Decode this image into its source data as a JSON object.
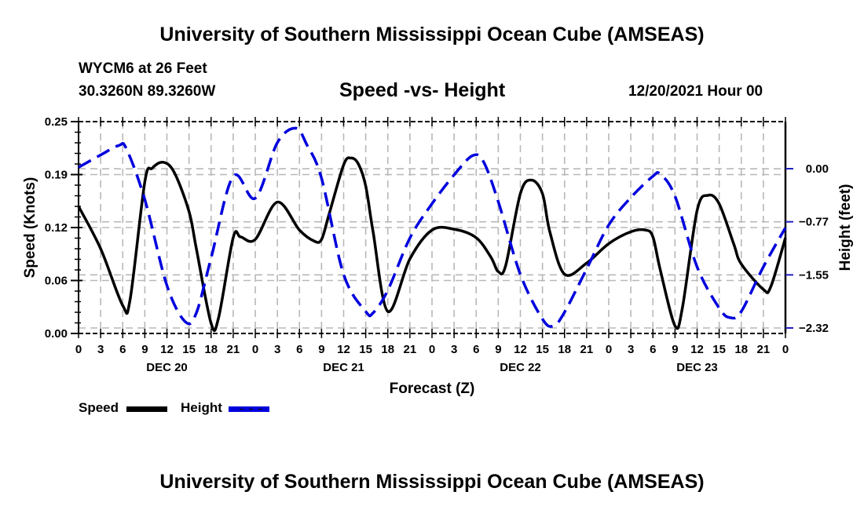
{
  "page": {
    "top_title": "University of Southern Mississippi Ocean Cube (AMSEAS)",
    "bottom_title": "University of Southern Mississippi Ocean Cube (AMSEAS)",
    "station": "WYCM6 at 26 Feet",
    "location": "30.3260N  89.3260W",
    "run_time": "12/20/2021 Hour 00"
  },
  "chart_data": {
    "type": "line",
    "title": "Speed -vs- Height",
    "xlabel": "Forecast (Z)",
    "ylabel": "Speed (Knots)",
    "y2label": "Height (feet)",
    "xlim": [
      0,
      96
    ],
    "ylim": [
      0,
      0.25
    ],
    "y2lim": [
      -2.4,
      0.686
    ],
    "grid": true,
    "legend_position": "bottom-left",
    "x_tick_labels": [
      "0",
      "3",
      "6",
      "9",
      "12",
      "15",
      "18",
      "21",
      "0",
      "3",
      "6",
      "9",
      "12",
      "15",
      "18",
      "21",
      "0",
      "3",
      "6",
      "9",
      "12",
      "15",
      "18",
      "21",
      "0",
      "3",
      "6",
      "9",
      "12",
      "15",
      "18",
      "21",
      "0"
    ],
    "day_labels": [
      {
        "label": "DEC 20",
        "hour": 12
      },
      {
        "label": "DEC 21",
        "hour": 36
      },
      {
        "label": "DEC 22",
        "hour": 60
      },
      {
        "label": "DEC 23",
        "hour": 84
      }
    ],
    "y_ticks": [
      {
        "value": 0.0,
        "label": "0.00"
      },
      {
        "value": 0.0625,
        "label": "0.06"
      },
      {
        "value": 0.125,
        "label": "0.12"
      },
      {
        "value": 0.1875,
        "label": "0.19"
      },
      {
        "value": 0.25,
        "label": "0.25"
      }
    ],
    "y2_ticks": [
      {
        "value": 0.0,
        "label": "0.00"
      },
      {
        "value": -0.7733,
        "label": "−0.77"
      },
      {
        "value": -1.5467,
        "label": "−1.55"
      },
      {
        "value": -2.32,
        "label": "−2.32"
      }
    ],
    "series": [
      {
        "name": "Speed",
        "axis": "left",
        "color": "#000000",
        "style": "solid",
        "x": [
          0,
          3,
          6,
          7,
          9,
          10,
          11.5,
          13,
          15,
          16,
          18,
          19,
          21,
          22,
          24,
          27,
          30,
          32,
          33,
          34,
          36,
          37,
          38,
          39,
          40,
          42,
          45,
          48,
          51,
          54,
          56,
          57,
          58,
          60,
          61.5,
          63,
          64,
          66,
          69,
          72,
          75,
          77,
          78,
          79,
          81,
          82,
          84,
          85.5,
          87,
          89,
          90,
          93,
          94,
          96
        ],
        "values": [
          0.15,
          0.1,
          0.033,
          0.04,
          0.179,
          0.195,
          0.202,
          0.19,
          0.144,
          0.1,
          0.012,
          0.018,
          0.113,
          0.114,
          0.111,
          0.155,
          0.122,
          0.109,
          0.111,
          0.14,
          0.199,
          0.207,
          0.2,
          0.174,
          0.12,
          0.026,
          0.088,
          0.122,
          0.123,
          0.113,
          0.09,
          0.073,
          0.08,
          0.165,
          0.181,
          0.165,
          0.12,
          0.07,
          0.083,
          0.106,
          0.12,
          0.122,
          0.114,
          0.075,
          0.009,
          0.03,
          0.145,
          0.163,
          0.153,
          0.105,
          0.082,
          0.052,
          0.055,
          0.113
        ]
      },
      {
        "name": "Height",
        "axis": "right",
        "color": "#0000dd",
        "style": "dashed",
        "x": [
          0,
          3,
          5.5,
          6.5,
          9,
          12,
          14.5,
          16,
          18,
          21,
          24,
          27,
          29.5,
          31,
          33,
          36,
          39,
          40,
          42,
          45,
          48,
          51,
          53.5,
          55,
          57,
          60,
          63,
          64.5,
          66,
          69,
          72,
          75,
          78,
          79,
          81,
          84,
          87,
          88.5,
          90,
          93,
          96
        ],
        "values": [
          0.02,
          0.2,
          0.34,
          0.29,
          -0.45,
          -1.7,
          -2.23,
          -2.1,
          -1.3,
          -0.11,
          -0.43,
          0.38,
          0.59,
          0.35,
          -0.14,
          -1.54,
          -2.08,
          -2.1,
          -1.77,
          -1.01,
          -0.51,
          -0.09,
          0.19,
          0.1,
          -0.48,
          -1.54,
          -2.19,
          -2.29,
          -2.09,
          -1.46,
          -0.82,
          -0.42,
          -0.11,
          -0.08,
          -0.4,
          -1.43,
          -2.03,
          -2.17,
          -2.08,
          -1.43,
          -0.86
        ]
      }
    ]
  },
  "legend": {
    "speed_label": "Speed",
    "height_label": "Height"
  }
}
